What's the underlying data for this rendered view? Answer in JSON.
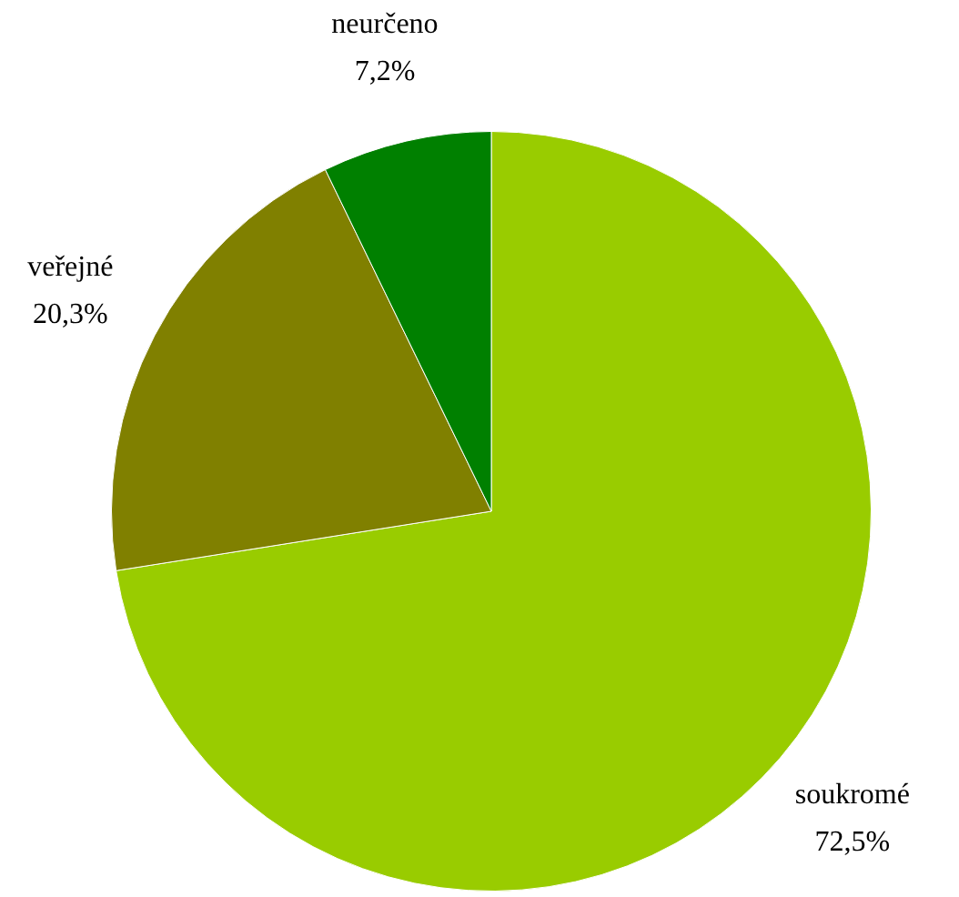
{
  "chart_data": {
    "type": "pie",
    "categories": [
      "soukromé",
      "veřejné",
      "neurčeno"
    ],
    "values": [
      72.5,
      20.3,
      7.2
    ],
    "colors": [
      "#99cc00",
      "#808000",
      "#008000"
    ],
    "value_labels": [
      "72,5%",
      "20,3%",
      "7,2%"
    ]
  }
}
